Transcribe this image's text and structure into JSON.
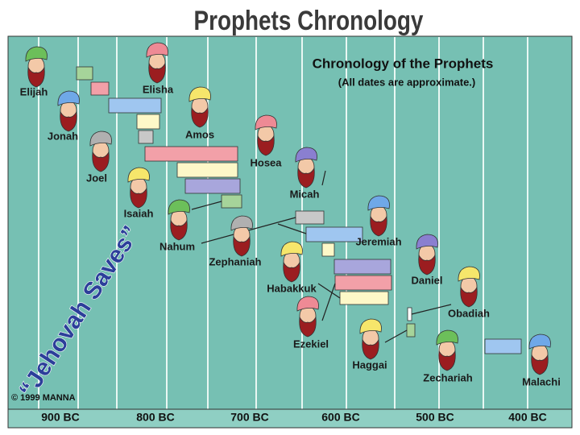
{
  "title": "Prophets Chronology",
  "diagram": {
    "heading": "Chronology of the Prophets",
    "note": "(All dates are approximate.)",
    "motto": "“Jehovah Saves”",
    "copyright": "© 1999 MANNA",
    "prophets": [
      "Elijah",
      "Elisha",
      "Jonah",
      "Amos",
      "Joel",
      "Hosea",
      "Isaiah",
      "Micah",
      "Nahum",
      "Jeremiah",
      "Zephaniah",
      "Daniel",
      "Habakkuk",
      "Obadiah",
      "Ezekiel",
      "Haggai",
      "Zechariah",
      "Malachi"
    ],
    "timeline": [
      "900 BC",
      "800 BC",
      "700 BC",
      "600 BC",
      "500 BC",
      "400 BC"
    ]
  }
}
